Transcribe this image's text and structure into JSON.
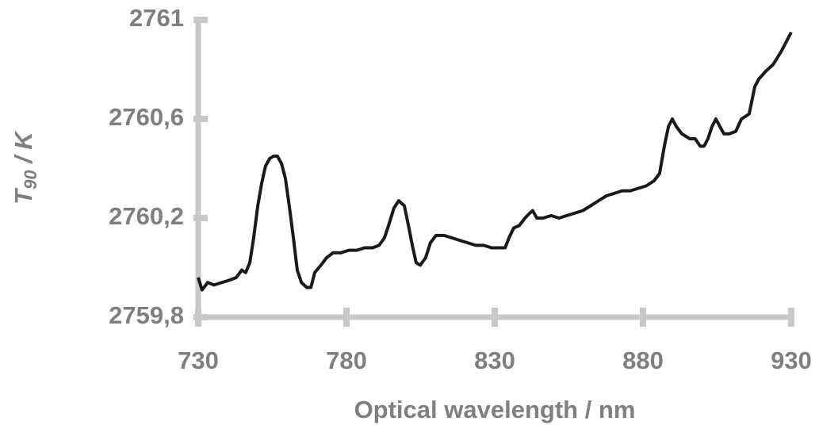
{
  "chart_data": {
    "type": "line",
    "xlabel": "Optical wavelength / nm",
    "ylabel": [
      "T",
      "90",
      " / K"
    ],
    "xlim": [
      730,
      930
    ],
    "xticks": [
      730,
      780,
      830,
      880,
      930
    ],
    "ylim": [
      2759.8,
      2761
    ],
    "yticks": [
      {
        "value": 2759.8,
        "label": "2759,8"
      },
      {
        "value": 2760.2,
        "label": "2760,2"
      },
      {
        "value": 2760.6,
        "label": "2760,6"
      },
      2761
    ],
    "axis_color": "#c8c8c8",
    "series": [
      {
        "color": "#1a1a1a",
        "x": [
          730.0,
          731.3,
          733.2,
          735.3,
          738.0,
          740.7,
          742.8,
          744.7,
          746.0,
          747.4,
          748.7,
          750.1,
          751.4,
          752.7,
          754.1,
          755.4,
          756.7,
          758.1,
          759.4,
          760.7,
          762.1,
          763.4,
          764.8,
          766.6,
          768.0,
          769.3,
          771.4,
          773.3,
          775.5,
          778.1,
          780.8,
          783.5,
          786.1,
          788.8,
          791.0,
          792.8,
          794.2,
          796.0,
          797.6,
          799.5,
          800.9,
          802.2,
          803.5,
          804.9,
          806.7,
          808.3,
          810.2,
          812.9,
          815.6,
          818.2,
          820.9,
          823.6,
          826.3,
          828.9,
          831.6,
          833.5,
          834.8,
          836.4,
          838.3,
          840.2,
          841.8,
          842.8,
          844.2,
          846.3,
          849.0,
          851.7,
          854.3,
          857.0,
          859.7,
          862.4,
          865.0,
          867.7,
          870.4,
          873.0,
          875.7,
          878.4,
          881.1,
          883.7,
          885.6,
          887.2,
          888.6,
          889.9,
          891.2,
          893.1,
          895.8,
          897.6,
          899.3,
          900.6,
          901.9,
          903.3,
          904.6,
          905.9,
          907.3,
          909.1,
          911.3,
          913.2,
          915.8,
          917.7,
          919.0,
          921.2,
          923.9,
          926.5,
          928.7,
          930.0
        ],
        "values": [
          2759.96,
          2759.91,
          2759.94,
          2759.93,
          2759.94,
          2759.95,
          2759.96,
          2759.99,
          2759.98,
          2760.02,
          2760.12,
          2760.25,
          2760.34,
          2760.41,
          2760.44,
          2760.45,
          2760.45,
          2760.42,
          2760.36,
          2760.25,
          2760.12,
          2759.99,
          2759.94,
          2759.92,
          2759.92,
          2759.98,
          2760.01,
          2760.04,
          2760.06,
          2760.06,
          2760.07,
          2760.07,
          2760.08,
          2760.08,
          2760.09,
          2760.12,
          2760.17,
          2760.24,
          2760.27,
          2760.25,
          2760.17,
          2760.09,
          2760.02,
          2760.01,
          2760.04,
          2760.1,
          2760.13,
          2760.13,
          2760.12,
          2760.11,
          2760.1,
          2760.09,
          2760.09,
          2760.08,
          2760.08,
          2760.08,
          2760.12,
          2760.16,
          2760.17,
          2760.2,
          2760.22,
          2760.23,
          2760.2,
          2760.2,
          2760.21,
          2760.2,
          2760.21,
          2760.22,
          2760.23,
          2760.25,
          2760.27,
          2760.29,
          2760.3,
          2760.31,
          2760.31,
          2760.32,
          2760.33,
          2760.35,
          2760.38,
          2760.49,
          2760.57,
          2760.6,
          2760.57,
          2760.54,
          2760.52,
          2760.52,
          2760.49,
          2760.49,
          2760.52,
          2760.57,
          2760.6,
          2760.57,
          2760.54,
          2760.54,
          2760.55,
          2760.6,
          2760.62,
          2760.73,
          2760.76,
          2760.79,
          2760.82,
          2760.87,
          2760.92,
          2760.95
        ]
      }
    ]
  }
}
